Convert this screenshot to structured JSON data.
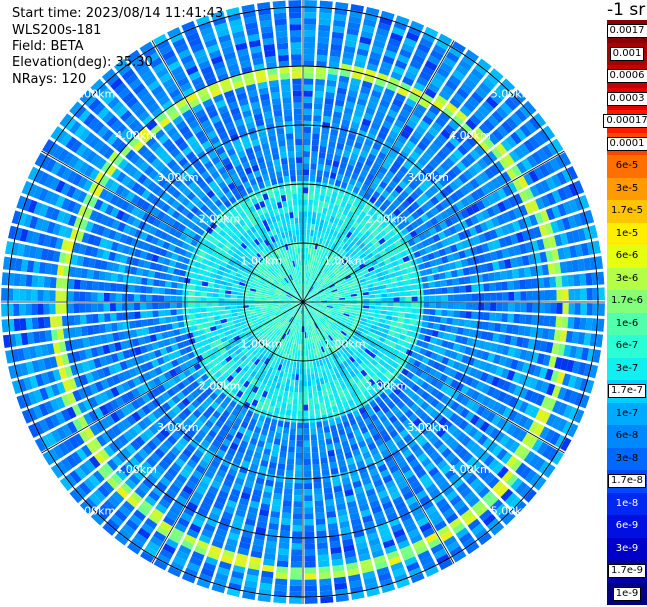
{
  "header": {
    "start_time": "Start time: 2023/08/14 11:41:43",
    "device": "WLS200s-181",
    "field": "Field: BETA",
    "elevation": "Elevation(deg): 35.30",
    "nrays": "NRays: 120"
  },
  "units": "-1 sr",
  "range_labels": [
    "1.00km",
    "2.00km",
    "3.00km",
    "4.00km",
    "5.00km"
  ],
  "colorbar": {
    "entries": [
      {
        "label": "0.0017",
        "color": "#8b0000",
        "style": "box"
      },
      {
        "label": "0.001",
        "color": "#a80000",
        "style": "box"
      },
      {
        "label": "0.0006",
        "color": "#c40000",
        "style": "box"
      },
      {
        "label": "0.0003",
        "color": "#e00000",
        "style": "box"
      },
      {
        "label": "0.00017",
        "color": "#ff1a00",
        "style": "box"
      },
      {
        "label": "0.0001",
        "color": "#ff4500",
        "style": "box"
      },
      {
        "label": "6e-5",
        "color": "#ff7000",
        "style": "plain"
      },
      {
        "label": "3e-5",
        "color": "#ff9a00",
        "style": "plain"
      },
      {
        "label": "1.7e-5",
        "color": "#ffc400",
        "style": "plain"
      },
      {
        "label": "1e-5",
        "color": "#ffee00",
        "style": "plain"
      },
      {
        "label": "6e-6",
        "color": "#e6ff10",
        "style": "plain"
      },
      {
        "label": "3e-6",
        "color": "#b4ff46",
        "style": "plain"
      },
      {
        "label": "1.7e-6",
        "color": "#83ff7b",
        "style": "plain"
      },
      {
        "label": "1e-6",
        "color": "#52ffad",
        "style": "plain"
      },
      {
        "label": "6e-7",
        "color": "#2affd5",
        "style": "plain"
      },
      {
        "label": "3e-7",
        "color": "#10f0f0",
        "style": "plain"
      },
      {
        "label": "1.7e-7",
        "color": "#00d0ff",
        "style": "box"
      },
      {
        "label": "1e-7",
        "color": "#00aaff",
        "style": "plain"
      },
      {
        "label": "6e-8",
        "color": "#0088ff",
        "style": "plain"
      },
      {
        "label": "3e-8",
        "color": "#0068ff",
        "style": "plain"
      },
      {
        "label": "1.7e-8",
        "color": "#0048ff",
        "style": "box"
      },
      {
        "label": "1e-8",
        "color": "#0028f0",
        "style": "plain"
      },
      {
        "label": "6e-9",
        "color": "#0010e0",
        "style": "plain"
      },
      {
        "label": "3e-9",
        "color": "#0000c8",
        "style": "plain"
      },
      {
        "label": "1.7e-9",
        "color": "#0000a8",
        "style": "box"
      },
      {
        "label": "1e-9",
        "color": "#000080",
        "style": "box"
      }
    ]
  }
}
